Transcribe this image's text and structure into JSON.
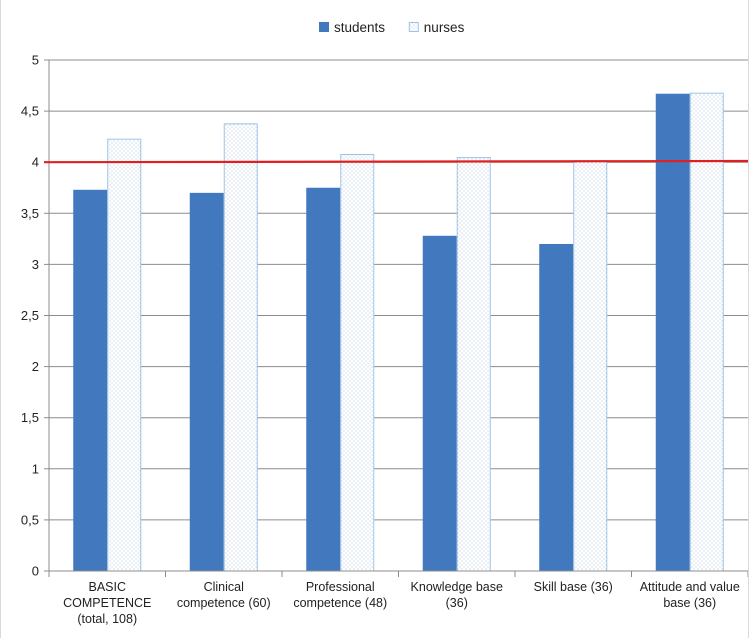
{
  "chart_data": {
    "type": "bar",
    "categories": [
      [
        "BASIC",
        "COMPETENCE",
        "(total, 108)"
      ],
      [
        "Clinical",
        "competence (60)"
      ],
      [
        "Professional",
        "competence (48)"
      ],
      [
        "Knowledge base",
        "(36)"
      ],
      [
        "Skill base (36)"
      ],
      [
        "Attitude and value",
        "base (36)"
      ]
    ],
    "series": [
      {
        "name": "students",
        "values": [
          3.73,
          3.7,
          3.75,
          3.28,
          3.2,
          4.67
        ],
        "color": "#4178be",
        "pattern": "solid"
      },
      {
        "name": "nurses",
        "values": [
          4.23,
          4.38,
          4.08,
          4.05,
          4.02,
          4.68
        ],
        "color": "#9dc3e6",
        "pattern": "dotted"
      }
    ],
    "ylim": [
      0,
      5
    ],
    "yticks": [
      "0",
      "0,5",
      "1",
      "1,5",
      "2",
      "2,5",
      "3",
      "3,5",
      "4",
      "4,5",
      "5"
    ],
    "reference_line": {
      "value": 4,
      "color": "#e02020"
    },
    "grid": true,
    "legend_position": "top-center",
    "title": "",
    "xlabel": "",
    "ylabel": ""
  }
}
